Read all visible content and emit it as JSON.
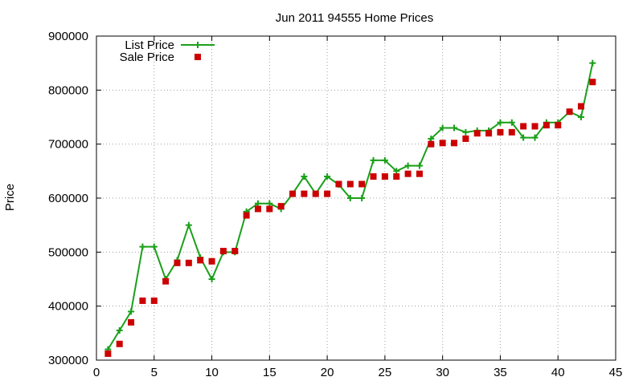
{
  "chart_data": {
    "type": "line",
    "title": "Jun 2011 94555 Home Prices",
    "xlabel": "",
    "ylabel": "Price",
    "xlim": [
      0,
      45
    ],
    "ylim": [
      300000,
      900000
    ],
    "x_ticks": [
      "0",
      "5",
      "10",
      "15",
      "20",
      "25",
      "30",
      "35",
      "40",
      "45"
    ],
    "y_ticks": [
      "300000",
      "400000",
      "500000",
      "600000",
      "700000",
      "800000",
      "900000"
    ],
    "grid": true,
    "legend_position": "top-left",
    "series": [
      {
        "name": "List Price",
        "style": "line-with-plus-markers",
        "color": "#1aa01a",
        "x": [
          1,
          2,
          3,
          4,
          5,
          6,
          7,
          8,
          9,
          10,
          11,
          12,
          13,
          14,
          15,
          16,
          17,
          18,
          19,
          20,
          21,
          22,
          23,
          24,
          25,
          26,
          27,
          28,
          29,
          30,
          31,
          32,
          33,
          34,
          35,
          36,
          37,
          38,
          39,
          40,
          41,
          42,
          43
        ],
        "values": [
          320000,
          355000,
          390000,
          510000,
          510000,
          450000,
          485000,
          550000,
          490000,
          450000,
          500000,
          500000,
          575000,
          590000,
          590000,
          580000,
          608000,
          640000,
          608000,
          640000,
          625000,
          600000,
          600000,
          670000,
          670000,
          650000,
          660000,
          660000,
          710000,
          730000,
          730000,
          722000,
          725000,
          725000,
          740000,
          740000,
          712000,
          712000,
          740000,
          740000,
          760000,
          750000,
          850000
        ]
      },
      {
        "name": "Sale Price",
        "style": "square-markers",
        "color": "#cc0000",
        "x": [
          1,
          2,
          3,
          4,
          5,
          6,
          7,
          8,
          9,
          10,
          11,
          12,
          13,
          14,
          15,
          16,
          17,
          18,
          19,
          20,
          21,
          22,
          23,
          24,
          25,
          26,
          27,
          28,
          29,
          30,
          31,
          32,
          33,
          34,
          35,
          36,
          37,
          38,
          39,
          40,
          41,
          42,
          43
        ],
        "values": [
          312000,
          330000,
          370000,
          410000,
          410000,
          446000,
          480000,
          480000,
          485000,
          483000,
          502000,
          502000,
          568000,
          580000,
          580000,
          585000,
          608000,
          608000,
          608000,
          608000,
          626000,
          626000,
          626000,
          640000,
          640000,
          640000,
          645000,
          645000,
          700000,
          702000,
          702000,
          710000,
          720000,
          720000,
          722000,
          722000,
          733000,
          733000,
          735000,
          735000,
          760000,
          770000,
          815000
        ]
      }
    ]
  }
}
